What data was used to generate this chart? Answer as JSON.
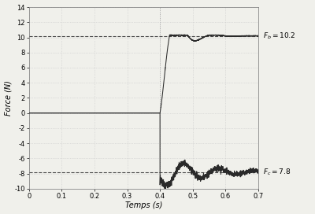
{
  "title": "",
  "xlabel": "Temps (s)",
  "ylabel": "Force (N)",
  "xlim": [
    0,
    0.7
  ],
  "ylim": [
    -10,
    14
  ],
  "yticks": [
    -10,
    -8,
    -6,
    -4,
    -2,
    0,
    2,
    4,
    6,
    8,
    10,
    12,
    14
  ],
  "xticks": [
    0,
    0.1,
    0.2,
    0.3,
    0.4,
    0.5,
    0.6,
    0.7
  ],
  "F_b": 10.2,
  "F_c": 7.8,
  "step_time": 0.4,
  "line_color": "#2a2a2a",
  "dashed_color": "#444444",
  "bg_color": "#f0f0eb",
  "grid_color": "#c8c8c8"
}
